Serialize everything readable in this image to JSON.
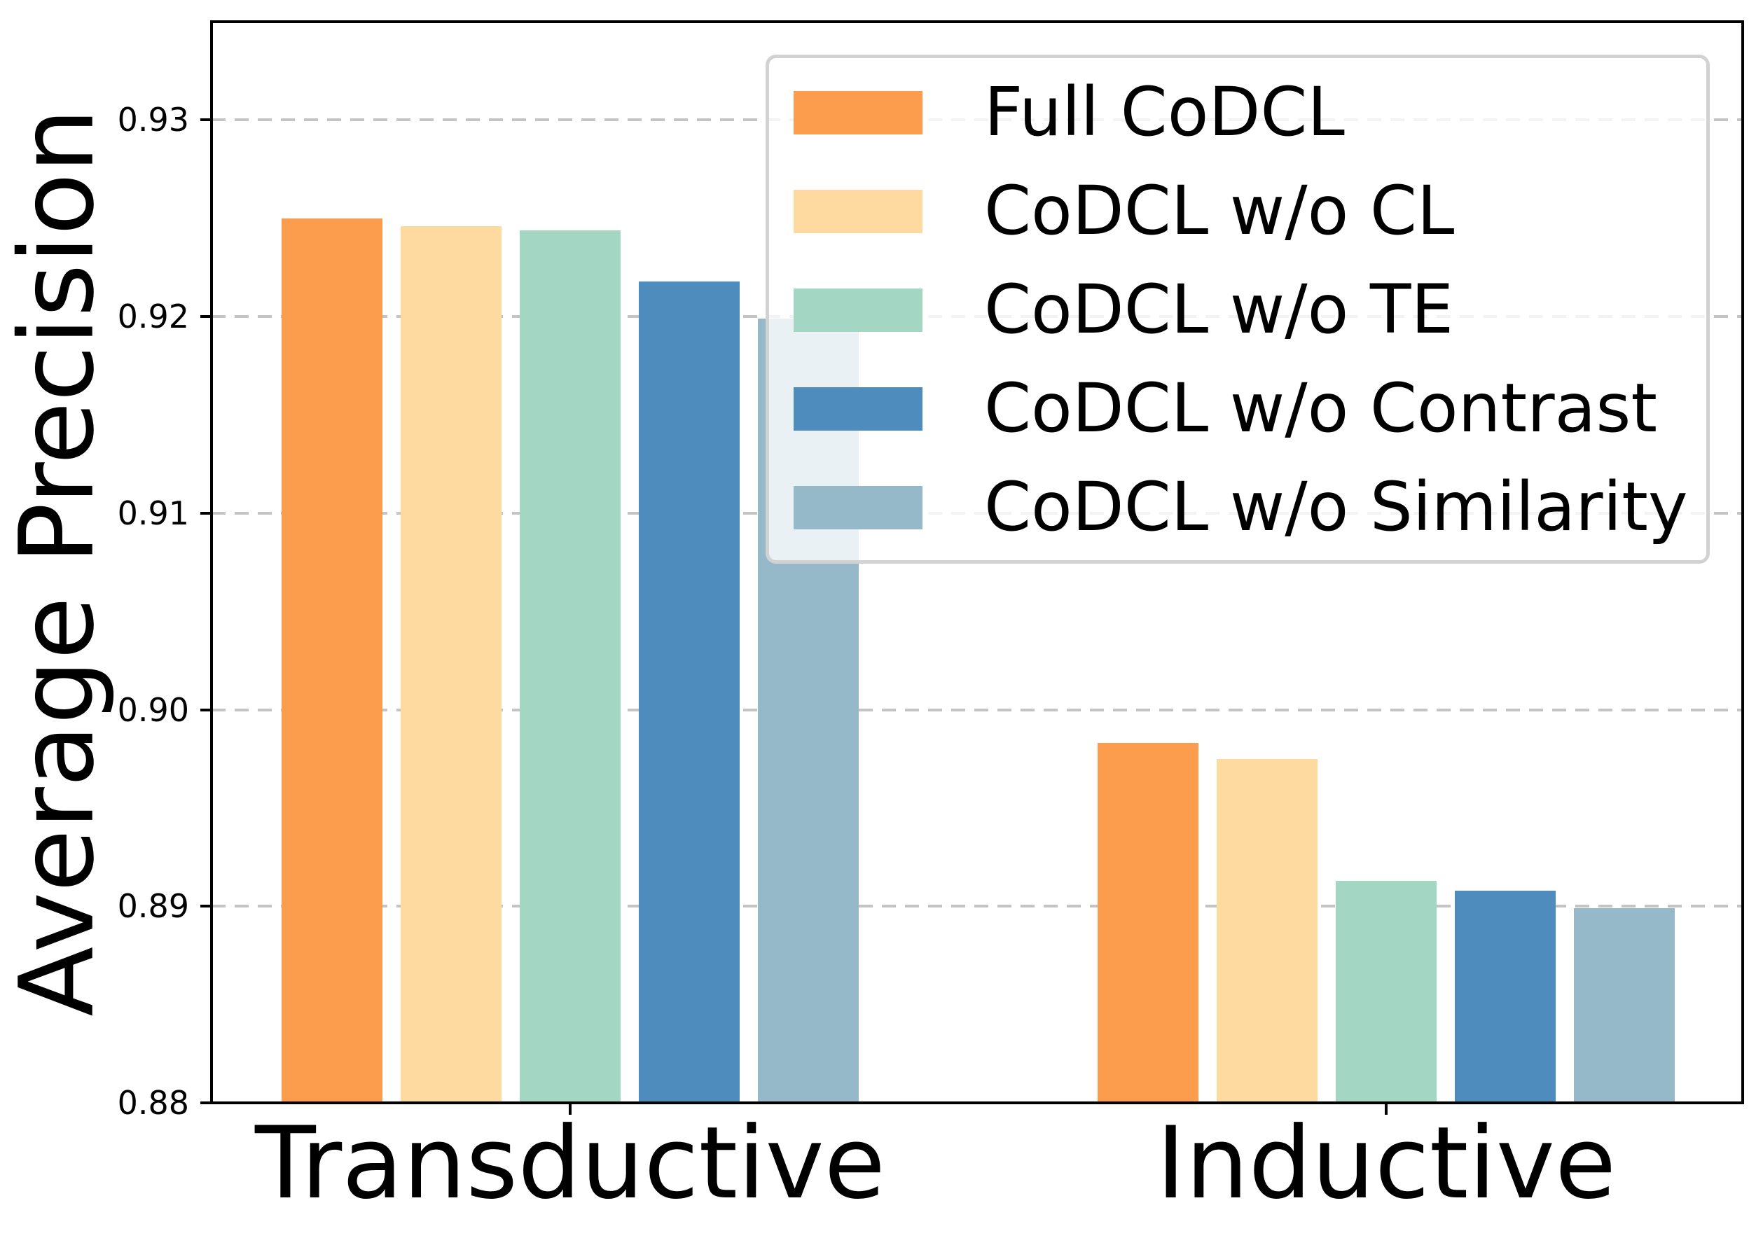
{
  "figure": {
    "background": "#ffffff"
  },
  "chart_data": {
    "type": "bar",
    "title": "",
    "xlabel": "",
    "ylabel": "Average Precision",
    "categories": [
      "Transductive",
      "Inductive"
    ],
    "series": [
      {
        "name": "Full CoDCL",
        "color": "#FC9D4E",
        "values": [
          0.925,
          0.8983
        ]
      },
      {
        "name": "CoDCL w/o CL",
        "color": "#FED9A0",
        "values": [
          0.9246,
          0.8975
        ]
      },
      {
        "name": "CoDCL w/o TE",
        "color": "#A3D6C3",
        "values": [
          0.9244,
          0.8913
        ]
      },
      {
        "name": "CoDCL w/o Contrast",
        "color": "#4E8CBD",
        "values": [
          0.9218,
          0.8908
        ]
      },
      {
        "name": "CoDCL w/o Similarity",
        "color": "#96B9C9",
        "values": [
          0.9199,
          0.8899
        ]
      }
    ],
    "ylim": [
      0.88,
      0.935
    ],
    "yticks": [
      0.88,
      0.89,
      0.9,
      0.91,
      0.92,
      0.93
    ],
    "ytick_labels": [
      "0.88",
      "0.89",
      "0.90",
      "0.91",
      "0.92",
      "0.93"
    ],
    "grid": "horizontal-dashed",
    "gridline_ticks": [
      0.89,
      0.9,
      0.91,
      0.92,
      0.93
    ],
    "legend_position": "upper-right-inside",
    "legend_entries": [
      "Full CoDCL",
      "CoDCL w/o CL",
      "CoDCL w/o TE",
      "CoDCL w/o Contrast",
      "CoDCL w/o Similarity"
    ]
  },
  "colors": {
    "axis": "#000000",
    "grid": "#c4c4c4",
    "legend_border": "#d2d2d2",
    "text": "#000000"
  }
}
